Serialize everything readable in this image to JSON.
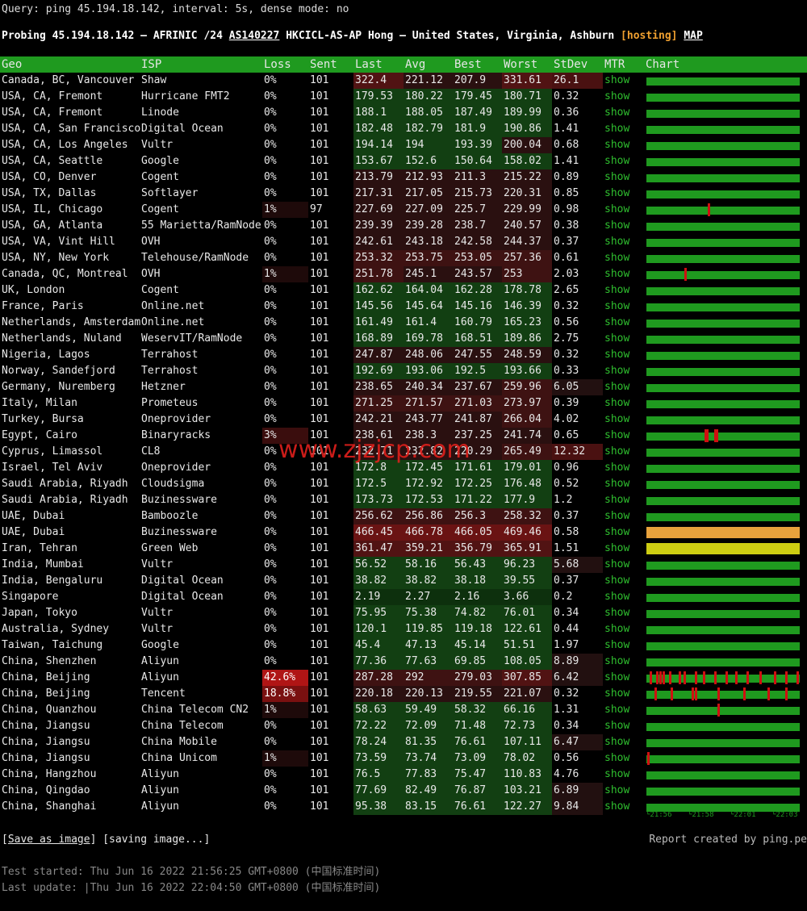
{
  "query": "Query: ping 45.194.18.142, interval: 5s, dense mode: no",
  "probing": [
    "Probing 45.194.18.142 – AFRINIC /24",
    "AS140227",
    "HKCICL-AS-AP Hong – United States, Virginia, Ashburn",
    "[",
    "hosting",
    "]",
    "MAP"
  ],
  "table": {
    "columns": [
      "Geo",
      "ISP",
      "Loss",
      "Sent",
      "Last",
      "Avg",
      "Best",
      "Worst",
      "StDev",
      "MTR",
      "Chart"
    ],
    "rows": [
      [
        "Canada, BC, Vancouver",
        "Shaw",
        "0%",
        "101",
        "322.4",
        "221.12",
        "207.9",
        "331.61",
        "26.1",
        "show"
      ],
      [
        "USA, CA, Fremont",
        "Hurricane FMT2",
        "0%",
        "101",
        "179.53",
        "180.22",
        "179.45",
        "180.71",
        "0.32",
        "show"
      ],
      [
        "USA, CA, Fremont",
        "Linode",
        "0%",
        "101",
        "188.1",
        "188.05",
        "187.49",
        "189.99",
        "0.36",
        "show"
      ],
      [
        "USA, CA, San Francisco",
        "Digital Ocean",
        "0%",
        "101",
        "182.48",
        "182.79",
        "181.9",
        "190.86",
        "1.41",
        "show"
      ],
      [
        "USA, CA, Los Angeles",
        "Vultr",
        "0%",
        "101",
        "194.14",
        "194",
        "193.39",
        "200.04",
        "0.68",
        "show"
      ],
      [
        "USA, CA, Seattle",
        "Google",
        "0%",
        "101",
        "153.67",
        "152.6",
        "150.64",
        "158.02",
        "1.41",
        "show"
      ],
      [
        "USA, CO, Denver",
        "Cogent",
        "0%",
        "101",
        "213.79",
        "212.93",
        "211.3",
        "215.22",
        "0.89",
        "show"
      ],
      [
        "USA, TX, Dallas",
        "Softlayer",
        "0%",
        "101",
        "217.31",
        "217.05",
        "215.73",
        "220.31",
        "0.85",
        "show"
      ],
      [
        "USA, IL, Chicago",
        "Cogent",
        "1%",
        "97",
        "227.69",
        "227.09",
        "225.7",
        "229.99",
        "0.98",
        "show"
      ],
      [
        "USA, GA, Atlanta",
        "55 Marietta/RamNode",
        "0%",
        "101",
        "239.39",
        "239.28",
        "238.7",
        "240.57",
        "0.38",
        "show"
      ],
      [
        "USA, VA, Vint Hill",
        "OVH",
        "0%",
        "101",
        "242.61",
        "243.18",
        "242.58",
        "244.37",
        "0.37",
        "show"
      ],
      [
        "USA, NY, New York",
        "Telehouse/RamNode",
        "0%",
        "101",
        "253.32",
        "253.75",
        "253.05",
        "257.36",
        "0.61",
        "show"
      ],
      [
        "Canada, QC, Montreal",
        "OVH",
        "1%",
        "101",
        "251.78",
        "245.1",
        "243.57",
        "253",
        "2.03",
        "show"
      ],
      [
        "UK, London",
        "Cogent",
        "0%",
        "101",
        "162.62",
        "164.04",
        "162.28",
        "178.78",
        "2.65",
        "show"
      ],
      [
        "France, Paris",
        "Online.net",
        "0%",
        "101",
        "145.56",
        "145.64",
        "145.16",
        "146.39",
        "0.32",
        "show"
      ],
      [
        "Netherlands, Amsterdam",
        "Online.net",
        "0%",
        "101",
        "161.49",
        "161.4",
        "160.79",
        "165.23",
        "0.56",
        "show"
      ],
      [
        "Netherlands, Nuland",
        "WeservIT/RamNode",
        "0%",
        "101",
        "168.89",
        "169.78",
        "168.51",
        "189.86",
        "2.75",
        "show"
      ],
      [
        "Nigeria, Lagos",
        "Terrahost",
        "0%",
        "101",
        "247.87",
        "248.06",
        "247.55",
        "248.59",
        "0.32",
        "show"
      ],
      [
        "Norway, Sandefjord",
        "Terrahost",
        "0%",
        "101",
        "192.69",
        "193.06",
        "192.5",
        "193.66",
        "0.33",
        "show"
      ],
      [
        "Germany, Nuremberg",
        "Hetzner",
        "0%",
        "101",
        "238.65",
        "240.34",
        "237.67",
        "259.96",
        "6.05",
        "show"
      ],
      [
        "Italy, Milan",
        "Prometeus",
        "0%",
        "101",
        "271.25",
        "271.57",
        "271.03",
        "273.97",
        "0.39",
        "show"
      ],
      [
        "Turkey, Bursa",
        "Oneprovider",
        "0%",
        "101",
        "242.21",
        "243.77",
        "241.87",
        "266.04",
        "4.02",
        "show"
      ],
      [
        "Egypt, Cairo",
        "Binaryracks",
        "3%",
        "101",
        "238.61",
        "238.3",
        "237.25",
        "241.74",
        "0.65",
        "show"
      ],
      [
        "Cyprus, Limassol",
        "CL8",
        "0%",
        "101",
        "232.71",
        "232.82",
        "220.29",
        "265.49",
        "12.32",
        "show"
      ],
      [
        "Israel, Tel Aviv",
        "Oneprovider",
        "0%",
        "101",
        "172.8",
        "172.45",
        "171.61",
        "179.01",
        "0.96",
        "show"
      ],
      [
        "Saudi Arabia, Riyadh",
        "Cloudsigma",
        "0%",
        "101",
        "172.5",
        "172.92",
        "172.25",
        "176.48",
        "0.52",
        "show"
      ],
      [
        "Saudi Arabia, Riyadh",
        "Buzinessware",
        "0%",
        "101",
        "173.73",
        "172.53",
        "171.22",
        "177.9",
        "1.2",
        "show"
      ],
      [
        "UAE, Dubai",
        "Bamboozle",
        "0%",
        "101",
        "256.62",
        "256.86",
        "256.3",
        "258.32",
        "0.37",
        "show"
      ],
      [
        "UAE, Dubai",
        "Buzinessware",
        "0%",
        "101",
        "466.45",
        "466.78",
        "466.05",
        "469.46",
        "0.58",
        "show"
      ],
      [
        "Iran, Tehran",
        "Green Web",
        "0%",
        "101",
        "361.47",
        "359.21",
        "356.79",
        "365.91",
        "1.51",
        "show"
      ],
      [
        "India, Mumbai",
        "Vultr",
        "0%",
        "101",
        "56.52",
        "58.16",
        "56.43",
        "96.23",
        "5.68",
        "show"
      ],
      [
        "India, Bengaluru",
        "Digital Ocean",
        "0%",
        "101",
        "38.82",
        "38.82",
        "38.18",
        "39.55",
        "0.37",
        "show"
      ],
      [
        "Singapore",
        "Digital Ocean",
        "0%",
        "101",
        "2.19",
        "2.27",
        "2.16",
        "3.66",
        "0.2",
        "show"
      ],
      [
        "Japan, Tokyo",
        "Vultr",
        "0%",
        "101",
        "75.95",
        "75.38",
        "74.82",
        "76.01",
        "0.34",
        "show"
      ],
      [
        "Australia, Sydney",
        "Vultr",
        "0%",
        "101",
        "120.1",
        "119.85",
        "119.18",
        "122.61",
        "0.44",
        "show"
      ],
      [
        "Taiwan, Taichung",
        "Google",
        "0%",
        "101",
        "45.4",
        "47.13",
        "45.14",
        "51.51",
        "1.97",
        "show"
      ],
      [
        "China, Shenzhen",
        "Aliyun",
        "0%",
        "101",
        "77.36",
        "77.63",
        "69.85",
        "108.05",
        "8.89",
        "show"
      ],
      [
        "China, Beijing",
        "Aliyun",
        "42.6%",
        "101",
        "287.28",
        "292",
        "279.03",
        "307.85",
        "6.42",
        "show"
      ],
      [
        "China, Beijing",
        "Tencent",
        "18.8%",
        "101",
        "220.18",
        "220.13",
        "219.55",
        "221.07",
        "0.32",
        "show"
      ],
      [
        "China, Quanzhou",
        "China Telecom CN2",
        "1%",
        "101",
        "58.63",
        "59.49",
        "58.32",
        "66.16",
        "1.31",
        "show"
      ],
      [
        "China, Jiangsu",
        "China Telecom",
        "0%",
        "101",
        "72.22",
        "72.09",
        "71.48",
        "72.73",
        "0.34",
        "show"
      ],
      [
        "China, Jiangsu",
        "China Mobile",
        "0%",
        "101",
        "78.24",
        "81.35",
        "76.61",
        "107.11",
        "6.47",
        "show"
      ],
      [
        "China, Jiangsu",
        "China Unicom",
        "1%",
        "101",
        "73.59",
        "73.74",
        "73.09",
        "78.02",
        "0.56",
        "show"
      ],
      [
        "China, Hangzhou",
        "Aliyun",
        "0%",
        "101",
        "76.5",
        "77.83",
        "75.47",
        "110.83",
        "4.76",
        "show"
      ],
      [
        "China, Qingdao",
        "Aliyun",
        "0%",
        "101",
        "77.69",
        "82.49",
        "76.87",
        "103.21",
        "6.89",
        "show"
      ],
      [
        "China, Shanghai",
        "Aliyun",
        "0%",
        "101",
        "95.38",
        "83.15",
        "76.61",
        "122.27",
        "9.84",
        "show"
      ]
    ]
  },
  "chart_times": [
    "└21:56",
    "└21:58",
    "└22:01",
    "└22:03"
  ],
  "watermark": "www.zjzjcp.com",
  "footer": {
    "save_open": "[",
    "save": "Save as image",
    "save_close": "]",
    "saving": "[saving image...]",
    "report": "Report created by ping.pe",
    "started": "Test started: Thu Jun 16 2022 21:56:25 GMT+0800 (中国标准时间)",
    "updated": "Last update: |Thu Jun 16 2022 22:04:50 GMT+0800 (中国标准时间)"
  }
}
